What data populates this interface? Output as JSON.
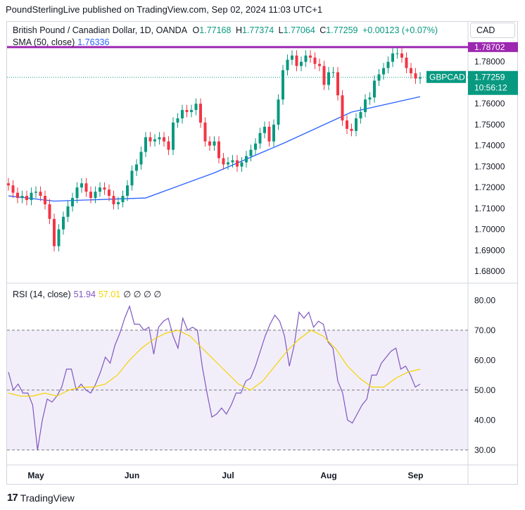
{
  "header": {
    "credit": "PoundSterlingLive published on TradingView.com, Sep 02, 2024 11:03 UTC+1"
  },
  "legend": {
    "symbol": "British Pound / Canadian Dollar, 1D, OANDA",
    "open_label": "O",
    "open": "1.77168",
    "high_label": "H",
    "high": "1.77374",
    "low_label": "L",
    "low": "1.77064",
    "close_label": "C",
    "close": "1.77259",
    "change": "+0.00123 (+0.07%)",
    "sma_label": "SMA (50, close)",
    "sma_value": "1.76336",
    "rsi_label": "RSI (14, close)",
    "rsi_value": "51.94",
    "rsi_ma_value": "57.01",
    "rsi_extra": "∅ ∅ ∅ ∅"
  },
  "currency_button": "CAD",
  "brand": {
    "name": "TradingView",
    "logo_glyph": "17"
  },
  "colors": {
    "up": "#089981",
    "down": "#f23645",
    "sma": "#2962ff",
    "rsi": "#7e57c2",
    "rsi_ma": "#f5d300",
    "hline": "#9c27b0",
    "band": "#7e57c2"
  },
  "chart_data": [
    {
      "type": "candlestick",
      "title": "British Pound / Canadian Dollar, 1D, OANDA",
      "ylim": [
        1.675,
        1.79
      ],
      "y_ticks": [
        "1.78000",
        "1.76000",
        "1.75000",
        "1.74000",
        "1.73000",
        "1.72000",
        "1.71000",
        "1.70000",
        "1.69000",
        "1.68000"
      ],
      "x_ticks": [
        "May",
        "Jun",
        "Jul",
        "Aug",
        "Sep"
      ],
      "price_tag": {
        "symbol": "GBPCAD",
        "value": "1.77259",
        "countdown": "10:56:12"
      },
      "horizontal_line": {
        "value": 1.78702,
        "label": "1.78702"
      },
      "close": [
        1.721,
        1.7175,
        1.715,
        1.716,
        1.714,
        1.7175,
        1.718,
        1.716,
        1.712,
        1.705,
        1.692,
        1.7,
        1.706,
        1.711,
        1.715,
        1.72,
        1.722,
        1.718,
        1.715,
        1.718,
        1.72,
        1.719,
        1.716,
        1.712,
        1.713,
        1.716,
        1.721,
        1.728,
        1.731,
        1.737,
        1.744,
        1.742,
        1.743,
        1.744,
        1.742,
        1.738,
        1.751,
        1.753,
        1.757,
        1.756,
        1.757,
        1.76,
        1.751,
        1.742,
        1.74,
        1.742,
        1.734,
        1.731,
        1.732,
        1.733,
        1.73,
        1.732,
        1.735,
        1.738,
        1.741,
        1.746,
        1.749,
        1.742,
        1.75,
        1.762,
        1.776,
        1.781,
        1.783,
        1.778,
        1.78,
        1.783,
        1.782,
        1.779,
        1.778,
        1.769,
        1.775,
        1.775,
        1.764,
        1.752,
        1.748,
        1.747,
        1.753,
        1.756,
        1.762,
        1.763,
        1.771,
        1.774,
        1.777,
        1.78,
        1.784,
        1.784,
        1.782,
        1.777,
        1.7745,
        1.772,
        1.7726
      ],
      "sma": [
        {
          "index": 0,
          "value": 1.716
        },
        {
          "index": 10,
          "value": 1.7135
        },
        {
          "index": 30,
          "value": 1.715
        },
        {
          "index": 45,
          "value": 1.727
        },
        {
          "index": 60,
          "value": 1.741
        },
        {
          "index": 75,
          "value": 1.756
        },
        {
          "index": 90,
          "value": 1.76336
        }
      ],
      "sma_name": "SMA (50, close)"
    },
    {
      "type": "line",
      "title": "RSI (14, close)",
      "ylim": [
        25,
        85
      ],
      "y_ticks": [
        "80.00",
        "70.00",
        "60.00",
        "50.00",
        "40.00",
        "30.00"
      ],
      "band": [
        30,
        70
      ],
      "midline": 50,
      "series": [
        {
          "name": "RSI (14, close)",
          "values": [
            56,
            50,
            52,
            49,
            49,
            45,
            30,
            40,
            47,
            46,
            48,
            51,
            57,
            57,
            50,
            52,
            50,
            49,
            52,
            56,
            61,
            59,
            65,
            69,
            74,
            78,
            72,
            72,
            70,
            71,
            62,
            71,
            73,
            74,
            68,
            64,
            74,
            70,
            71,
            70,
            58,
            49,
            41,
            42,
            44,
            42,
            45,
            49,
            49,
            53,
            54,
            58,
            63,
            68,
            72,
            75,
            73,
            68,
            58,
            65,
            76,
            74,
            76,
            71,
            73,
            72,
            66,
            64,
            53,
            49,
            40,
            39,
            42,
            45,
            47,
            55,
            55,
            59,
            61,
            63,
            64,
            57,
            58,
            55,
            51,
            52
          ]
        },
        {
          "name": "RSI-based MA",
          "values": [
            49,
            48,
            48,
            49,
            48,
            50,
            51,
            51,
            52,
            55,
            60,
            64,
            67,
            69,
            70,
            68,
            64,
            60,
            56,
            52,
            50,
            53,
            58,
            63,
            67,
            70,
            68,
            64,
            58,
            54,
            51,
            51,
            54,
            56,
            57
          ]
        }
      ]
    }
  ]
}
